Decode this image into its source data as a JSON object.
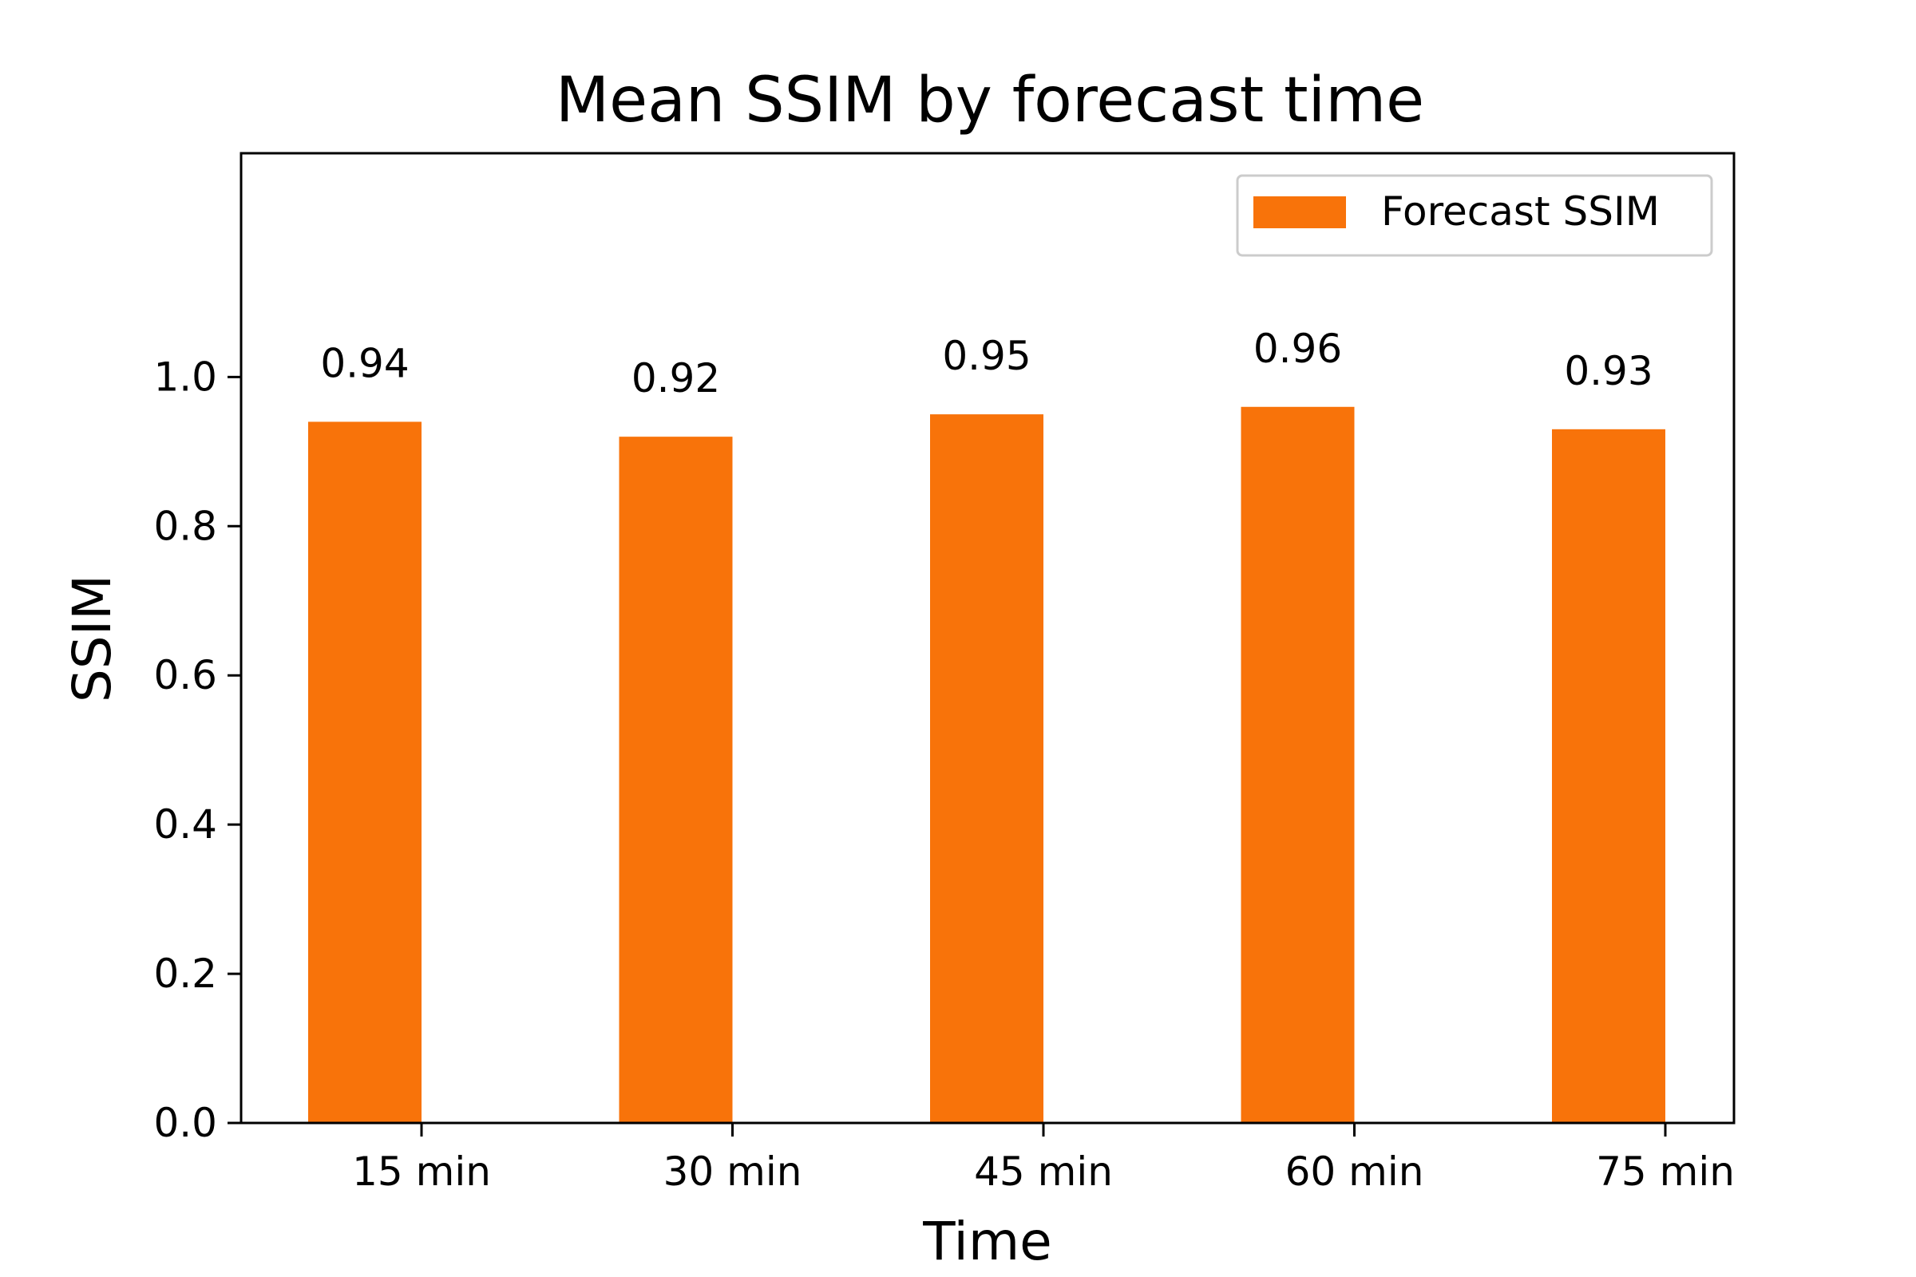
{
  "chart_data": {
    "type": "bar",
    "title": "Mean SSIM by forecast time",
    "xlabel": "Time",
    "ylabel": "SSIM",
    "categories": [
      "15 min",
      "30 min",
      "45 min",
      "60 min",
      "75 min"
    ],
    "series": [
      {
        "name": "Forecast SSIM",
        "values": [
          0.94,
          0.92,
          0.95,
          0.96,
          0.93
        ],
        "labels": [
          "0.94",
          "0.92",
          "0.95",
          "0.96",
          "0.93"
        ],
        "color": "#f8730a"
      }
    ],
    "ylim": [
      0,
      1.3
    ],
    "yticks": [
      0.0,
      0.2,
      0.4,
      0.6,
      0.8,
      1.0
    ],
    "ytick_labels": [
      "0.0",
      "0.2",
      "0.4",
      "0.6",
      "0.8",
      "1.0"
    ],
    "grid": false,
    "legend_position": "top-right"
  }
}
